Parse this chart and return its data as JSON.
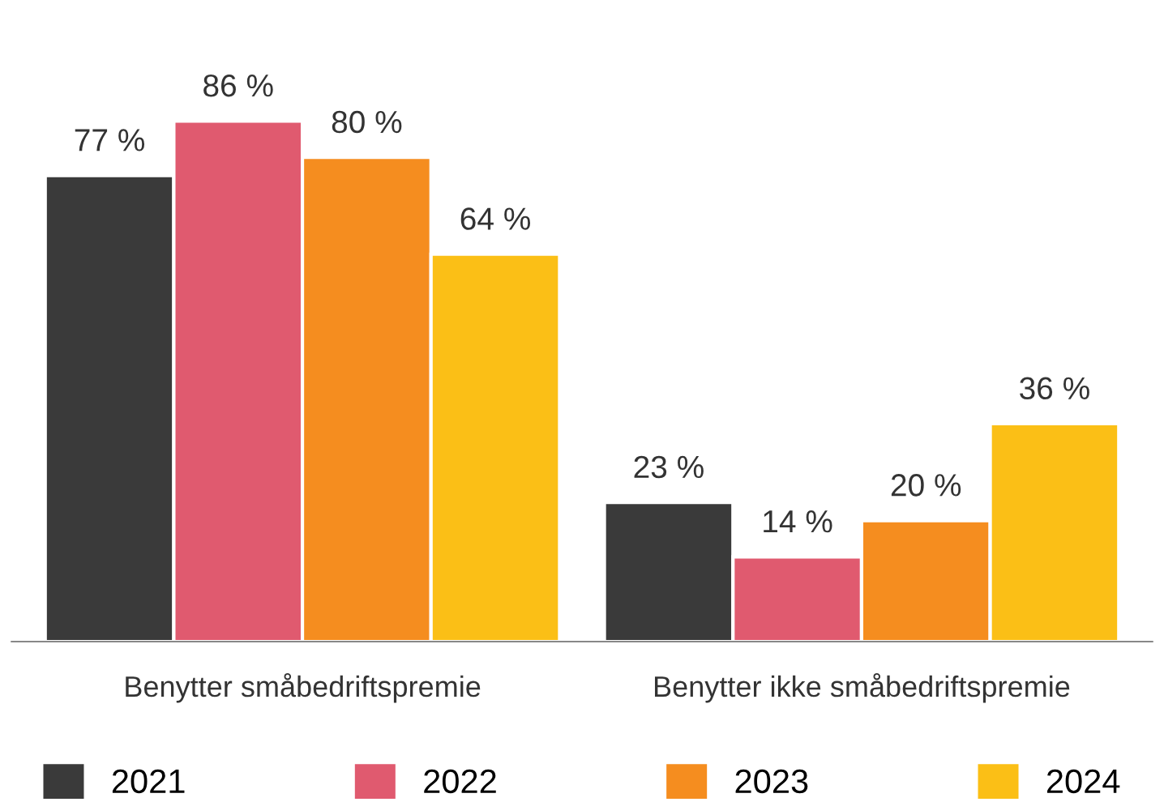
{
  "chart_data": {
    "type": "bar",
    "categories": [
      "Benytter småbedriftspremie",
      "Benytter ikke småbedriftspremie"
    ],
    "series": [
      {
        "name": "2021",
        "color": "#3a3a3a",
        "values": [
          77,
          23
        ],
        "value_labels": [
          "77 %",
          "23 %"
        ]
      },
      {
        "name": "2022",
        "color": "#e05a6f",
        "values": [
          86,
          14
        ],
        "value_labels": [
          "86 %",
          "14 %"
        ]
      },
      {
        "name": "2023",
        "color": "#f58d1f",
        "values": [
          80,
          20
        ],
        "value_labels": [
          "80 %",
          "20 %"
        ]
      },
      {
        "name": "2024",
        "color": "#fbbf16",
        "values": [
          64,
          36
        ],
        "value_labels": [
          "64 %",
          "36 %"
        ]
      }
    ],
    "legend": "bottom",
    "grid": false
  }
}
